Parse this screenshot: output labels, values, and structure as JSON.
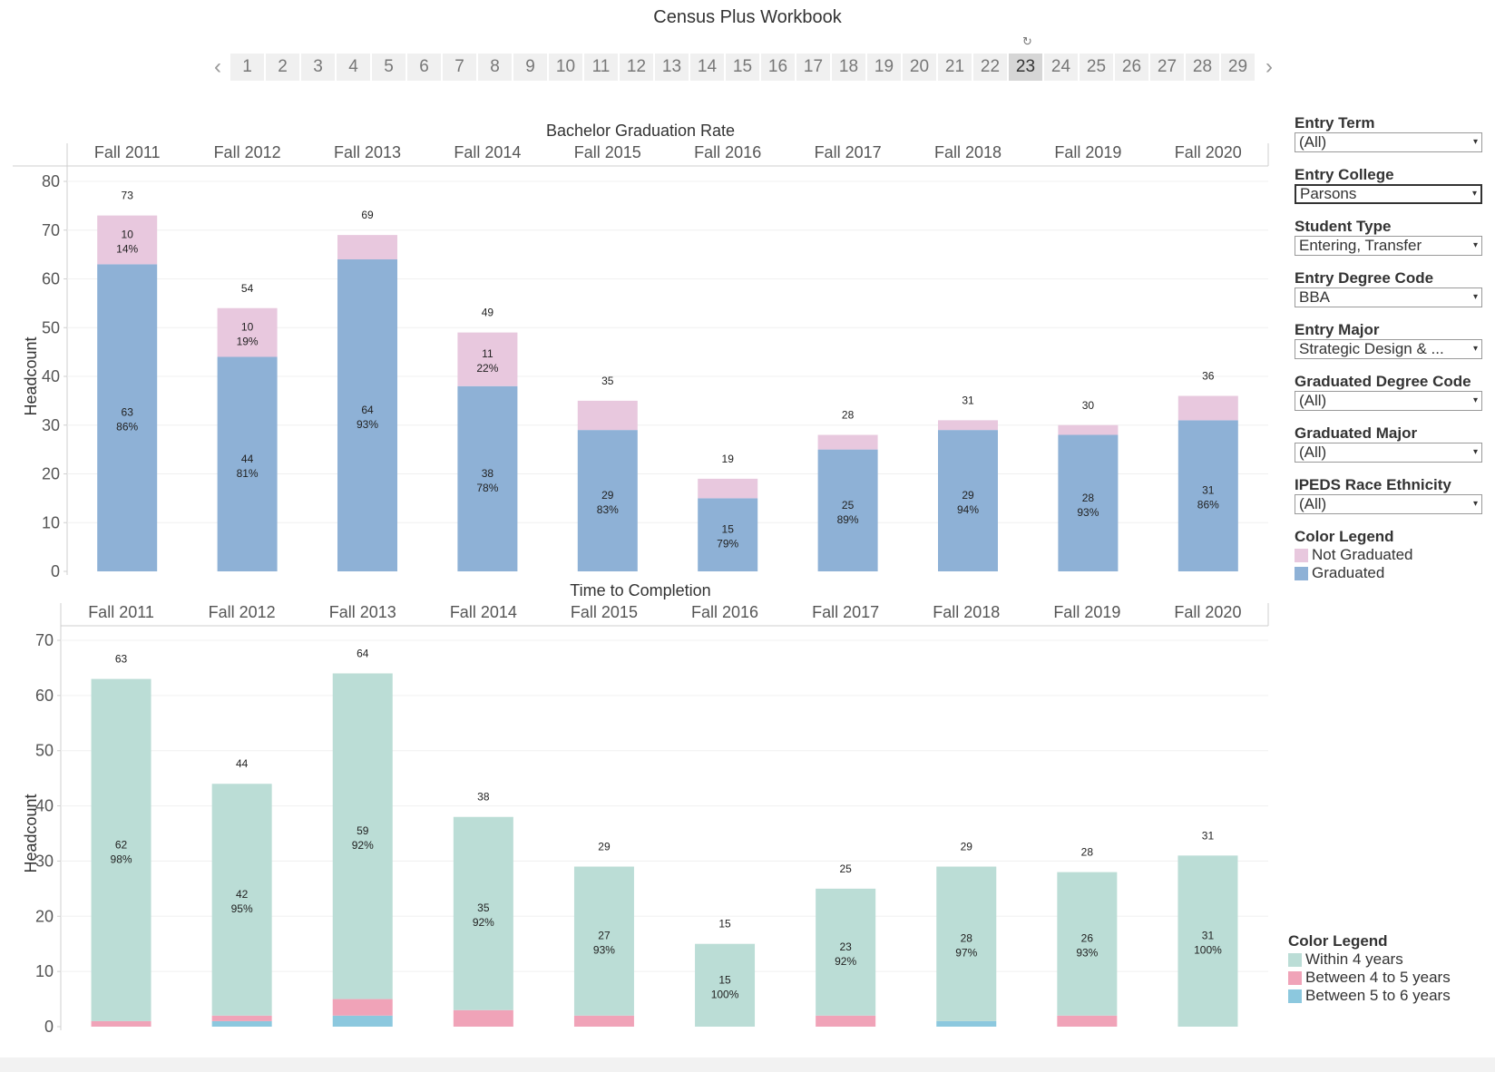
{
  "workbook": {
    "title": "Census Plus Workbook"
  },
  "pager": {
    "pages": [
      "1",
      "2",
      "3",
      "4",
      "5",
      "6",
      "7",
      "8",
      "9",
      "10",
      "11",
      "12",
      "13",
      "14",
      "15",
      "16",
      "17",
      "18",
      "19",
      "20",
      "21",
      "22",
      "23",
      "24",
      "25",
      "26",
      "27",
      "28",
      "29"
    ],
    "active": "23",
    "prev_icon": "chevron-left-icon",
    "next_icon": "chevron-right-icon"
  },
  "filters": [
    {
      "label": "Entry Term",
      "value": "(All)"
    },
    {
      "label": "Entry College",
      "value": "Parsons"
    },
    {
      "label": "Student Type",
      "value": "Entering, Transfer"
    },
    {
      "label": "Entry Degree Code",
      "value": "BBA"
    },
    {
      "label": "Entry Major",
      "value": "Strategic Design & ..."
    },
    {
      "label": "Graduated Degree Code",
      "value": "(All)"
    },
    {
      "label": "Graduated Major",
      "value": "(All)"
    },
    {
      "label": "IPEDS Race Ethnicity",
      "value": "(All)"
    }
  ],
  "legend1": {
    "title": "Color Legend",
    "items": [
      {
        "label": "Not Graduated",
        "color": "#e8c8de"
      },
      {
        "label": "Graduated",
        "color": "#8eb1d6"
      }
    ]
  },
  "legend2": {
    "title": "Color Legend",
    "items": [
      {
        "label": "Within 4 years",
        "color": "#bbddd6"
      },
      {
        "label": "Between 4 to 5 years",
        "color": "#f0a3b8"
      },
      {
        "label": "Between 5 to 6 years",
        "color": "#8cc8de"
      }
    ]
  },
  "chart_data": [
    {
      "type": "bar",
      "stacked": true,
      "title": "Bachelor Graduation Rate",
      "categories": [
        "Fall 2011",
        "Fall 2012",
        "Fall 2013",
        "Fall 2014",
        "Fall 2015",
        "Fall 2016",
        "Fall 2017",
        "Fall 2018",
        "Fall 2019",
        "Fall 2020"
      ],
      "ylabel": "Headcount",
      "ylim": [
        0,
        80
      ],
      "yticks": [
        "0",
        "10",
        "20",
        "30",
        "40",
        "50",
        "60",
        "70",
        "80"
      ],
      "totals": [
        73,
        54,
        69,
        49,
        35,
        19,
        28,
        31,
        30,
        36
      ],
      "series": [
        {
          "name": "Graduated",
          "color": "#8eb1d6",
          "values": [
            63,
            44,
            64,
            38,
            29,
            15,
            25,
            29,
            28,
            31
          ],
          "labels": [
            [
              "63",
              "86%"
            ],
            [
              "44",
              "81%"
            ],
            [
              "64",
              "93%"
            ],
            [
              "38",
              "78%"
            ],
            [
              "29",
              "83%"
            ],
            [
              "15",
              "79%"
            ],
            [
              "25",
              "89%"
            ],
            [
              "29",
              "94%"
            ],
            [
              "28",
              "93%"
            ],
            [
              "31",
              "86%"
            ]
          ]
        },
        {
          "name": "Not Graduated",
          "color": "#e8c8de",
          "values": [
            10,
            10,
            5,
            11,
            6,
            4,
            3,
            2,
            2,
            5
          ],
          "labels": [
            [
              "10",
              "14%"
            ],
            [
              "10",
              "19%"
            ],
            null,
            [
              "11",
              "22%"
            ],
            null,
            null,
            null,
            null,
            null,
            null
          ]
        }
      ],
      "totals_labels": [
        "73",
        "54",
        "69",
        "49",
        "35",
        "19",
        "28",
        "31",
        "30",
        "36"
      ]
    },
    {
      "type": "bar",
      "stacked": true,
      "title": "Time to Completion",
      "categories": [
        "Fall 2011",
        "Fall 2012",
        "Fall 2013",
        "Fall 2014",
        "Fall 2015",
        "Fall 2016",
        "Fall 2017",
        "Fall 2018",
        "Fall 2019",
        "Fall 2020"
      ],
      "ylabel": "Headcount",
      "ylim": [
        0,
        70
      ],
      "yticks": [
        "0",
        "10",
        "20",
        "30",
        "40",
        "50",
        "60",
        "70"
      ],
      "totals": [
        63,
        44,
        64,
        38,
        29,
        15,
        25,
        29,
        28,
        31
      ],
      "series": [
        {
          "name": "Between 5 to 6 years",
          "color": "#8cc8de",
          "values": [
            0,
            1,
            2,
            0,
            0,
            0,
            0,
            1,
            0,
            0
          ],
          "labels": [
            null,
            null,
            null,
            null,
            null,
            null,
            null,
            null,
            null,
            null
          ]
        },
        {
          "name": "Between 4 to 5 years",
          "color": "#f0a3b8",
          "values": [
            1,
            1,
            3,
            3,
            2,
            0,
            2,
            0,
            2,
            0
          ],
          "labels": [
            null,
            null,
            null,
            null,
            null,
            null,
            null,
            null,
            null,
            null
          ]
        },
        {
          "name": "Within 4 years",
          "color": "#bbddd6",
          "values": [
            62,
            42,
            59,
            35,
            27,
            15,
            23,
            28,
            26,
            31
          ],
          "labels": [
            [
              "62",
              "98%"
            ],
            [
              "42",
              "95%"
            ],
            [
              "59",
              "92%"
            ],
            [
              "35",
              "92%"
            ],
            [
              "27",
              "93%"
            ],
            [
              "15",
              "100%"
            ],
            [
              "23",
              "92%"
            ],
            [
              "28",
              "97%"
            ],
            [
              "26",
              "93%"
            ],
            [
              "31",
              "100%"
            ]
          ]
        }
      ],
      "totals_labels": [
        "63",
        "44",
        "64",
        "38",
        "29",
        "15",
        "25",
        "29",
        "28",
        "31"
      ]
    }
  ]
}
